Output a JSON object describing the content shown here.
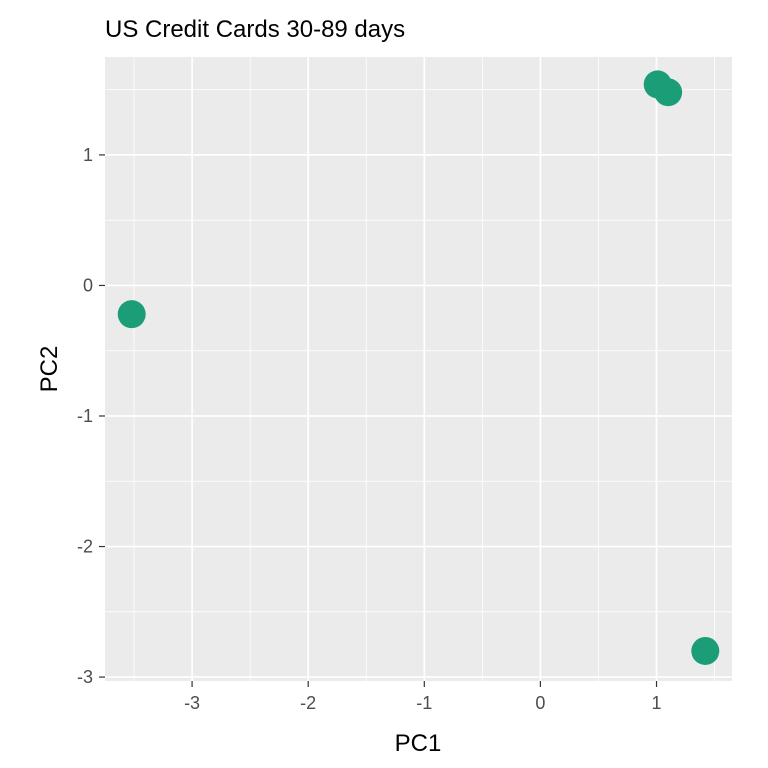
{
  "chart_data": {
    "type": "scatter",
    "title": "US Credit Cards 30-89 days",
    "xlabel": "PC1",
    "ylabel": "PC2",
    "xlim": [
      -3.75,
      1.65
    ],
    "ylim": [
      -3.03,
      1.75
    ],
    "x_ticks": [
      -3,
      -2,
      -1,
      0,
      1
    ],
    "y_ticks": [
      -3,
      -2,
      -1,
      0,
      1
    ],
    "x_tick_labels": [
      "-3",
      "-2",
      "-1",
      "0",
      "1"
    ],
    "y_tick_labels": [
      "-3",
      "-2",
      "-1",
      "0",
      "1"
    ],
    "grid": true,
    "points": [
      {
        "x": -3.52,
        "y": -0.22
      },
      {
        "x": 1.01,
        "y": 1.54
      },
      {
        "x": 1.1,
        "y": 1.48
      },
      {
        "x": 1.42,
        "y": -2.8
      }
    ],
    "colors": {
      "point": "#1b9e77",
      "panel": "#ebebeb",
      "grid": "#ffffff",
      "tick": "#4d4d4d"
    }
  }
}
